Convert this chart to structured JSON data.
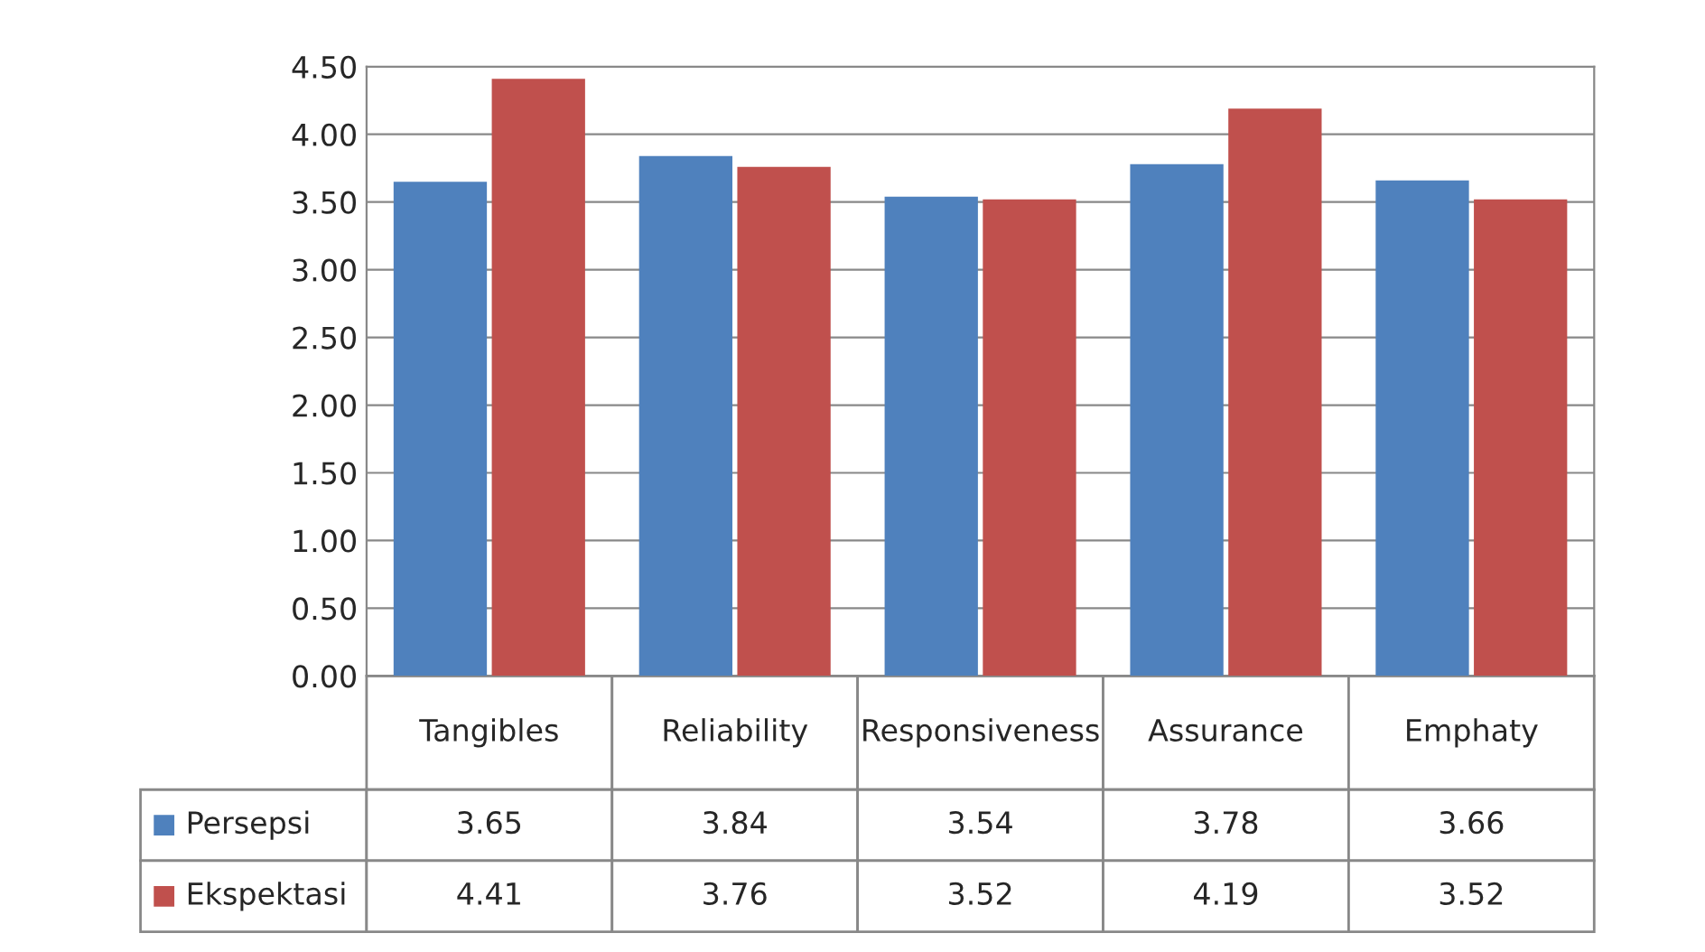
{
  "chart_data": {
    "type": "bar",
    "categories": [
      "Tangibles",
      "Reliability",
      "Responsiveness",
      "Assurance",
      "Emphaty"
    ],
    "series": [
      {
        "name": "Persepsi",
        "color": "#4f81bd",
        "values": [
          3.65,
          3.84,
          3.54,
          3.78,
          3.66
        ]
      },
      {
        "name": "Ekspektasi",
        "color": "#c0504d",
        "values": [
          4.41,
          3.76,
          3.52,
          4.19,
          3.52
        ]
      }
    ],
    "ylim": [
      0,
      4.5
    ],
    "yticks": [
      {
        "value": 0,
        "label": "0.00"
      },
      {
        "value": 0.5,
        "label": "0.50"
      },
      {
        "value": 1,
        "label": "1.00"
      },
      {
        "value": 1.5,
        "label": "1.50"
      },
      {
        "value": 2,
        "label": "2.00"
      },
      {
        "value": 2.5,
        "label": "2.50"
      },
      {
        "value": 3,
        "label": "3.00"
      },
      {
        "value": 3.5,
        "label": "3.50"
      },
      {
        "value": 4,
        "label": "4.00"
      },
      {
        "value": 4.5,
        "label": "4.50"
      }
    ],
    "grid": "y",
    "data_labels": true,
    "legend": "bottom left"
  }
}
